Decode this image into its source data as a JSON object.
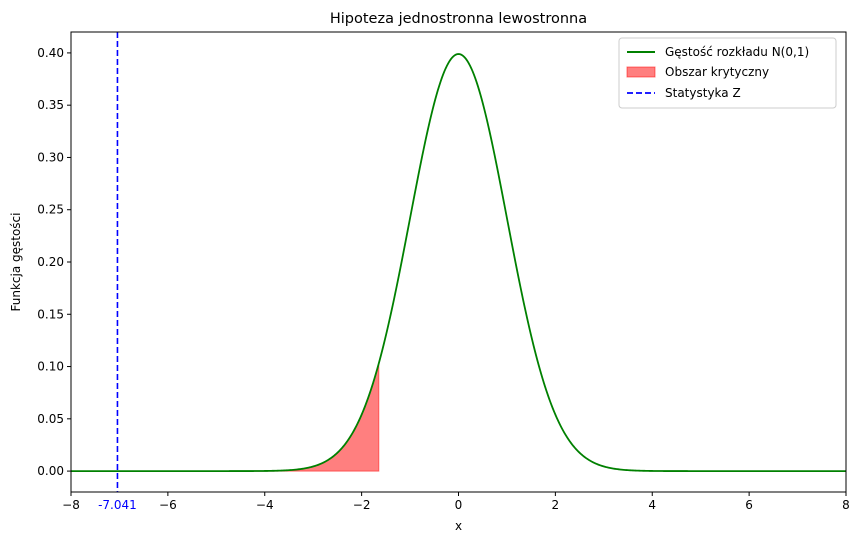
{
  "chart_data": {
    "type": "line",
    "title": "Hipoteza jednostronna lewostronna",
    "xlabel": "x",
    "ylabel": "Funkcja gęstości",
    "xlim": [
      -8,
      8
    ],
    "ylim": [
      -0.02,
      0.42
    ],
    "xticks": [
      -8,
      -6,
      -4,
      -2,
      0,
      2,
      4,
      6,
      8
    ],
    "yticks": [
      0.0,
      0.05,
      0.1,
      0.15,
      0.2,
      0.25,
      0.3,
      0.35,
      0.4
    ],
    "grid": false,
    "legend_position": "top-right",
    "series": [
      {
        "name": "Gęstość rozkładu N(0,1)",
        "kind": "line",
        "color": "#008000",
        "function": "normal_pdf",
        "mean": 0,
        "std": 1,
        "x_range": [
          -8,
          8
        ]
      },
      {
        "name": "Obszar krytyczny",
        "kind": "area",
        "color": "#ff0000",
        "opacity": 0.5,
        "function": "normal_pdf",
        "x_range": [
          -8,
          -1.645
        ]
      },
      {
        "name": "Statystyka Z",
        "kind": "vline",
        "color": "#0000ff",
        "style": "dashed",
        "x": -7.041
      }
    ],
    "annotations": [
      {
        "text": "-7.041",
        "x": -7.041,
        "color": "#0000ff"
      }
    ]
  }
}
